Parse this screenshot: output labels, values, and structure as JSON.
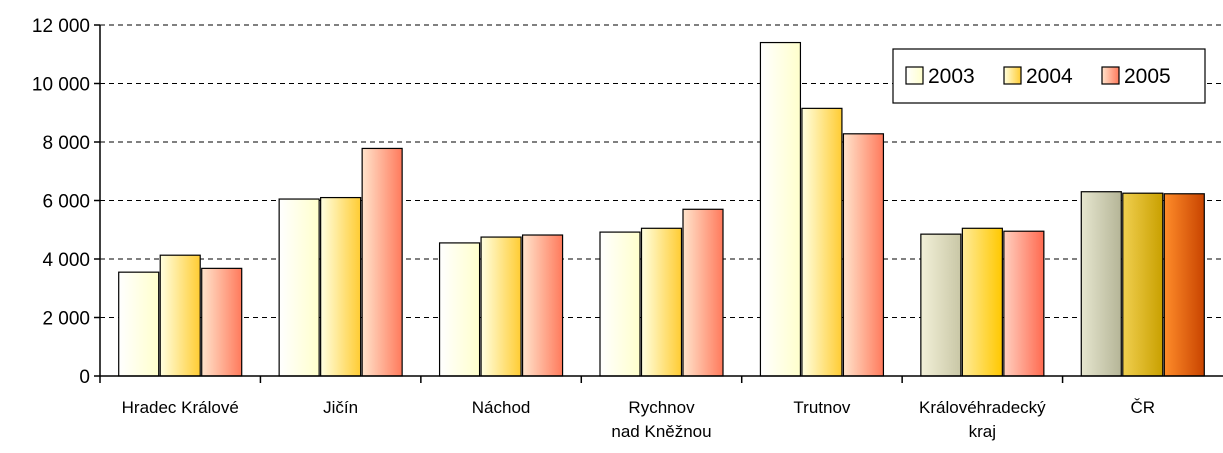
{
  "chart_data": {
    "type": "bar",
    "title": "",
    "xlabel": "",
    "ylabel": "",
    "ylim": [
      0,
      12000
    ],
    "yticks": [
      0,
      2000,
      4000,
      6000,
      8000,
      10000,
      12000
    ],
    "ytick_labels": [
      "0",
      "2 000",
      "4 000",
      "6 000",
      "8 000",
      "10 000",
      "12 000"
    ],
    "grid": "horizontal dashed",
    "legend_position": "top-right",
    "categories": [
      [
        "Hradec Králové"
      ],
      [
        "Jičín"
      ],
      [
        "Náchod"
      ],
      [
        "Rychnov",
        "nad Kněžnou"
      ],
      [
        "Trutnov"
      ],
      [
        "Královéhradecký",
        "kraj"
      ],
      [
        "ČR"
      ]
    ],
    "series": [
      {
        "name": "2003",
        "values": [
          3550,
          6050,
          4550,
          4920,
          11400,
          4850,
          6300
        ]
      },
      {
        "name": "2004",
        "values": [
          4130,
          6100,
          4750,
          5050,
          9150,
          5050,
          6250
        ]
      },
      {
        "name": "2005",
        "values": [
          3680,
          7780,
          4820,
          5700,
          8280,
          4950,
          6230
        ]
      }
    ],
    "colors": {
      "series": [
        {
          "light": "#ffffff",
          "dark": "#ffffcc"
        },
        {
          "light": "#ffffe0",
          "dark": "#ffcc33"
        },
        {
          "light": "#ffe4cc",
          "dark": "#ff7a5c"
        }
      ],
      "special_groups": {
        "5": [
          {
            "light": "#f2f0d8",
            "dark": "#c9c7a6"
          },
          {
            "light": "#ffeb99",
            "dark": "#ffc800"
          },
          {
            "light": "#ffd0c0",
            "dark": "#ff6a50"
          }
        ],
        "6": [
          {
            "light": "#e6e6cf",
            "dark": "#b5b597"
          },
          {
            "light": "#f0cf50",
            "dark": "#c9a000"
          },
          {
            "light": "#ff8c2a",
            "dark": "#c84400"
          }
        ]
      }
    }
  }
}
